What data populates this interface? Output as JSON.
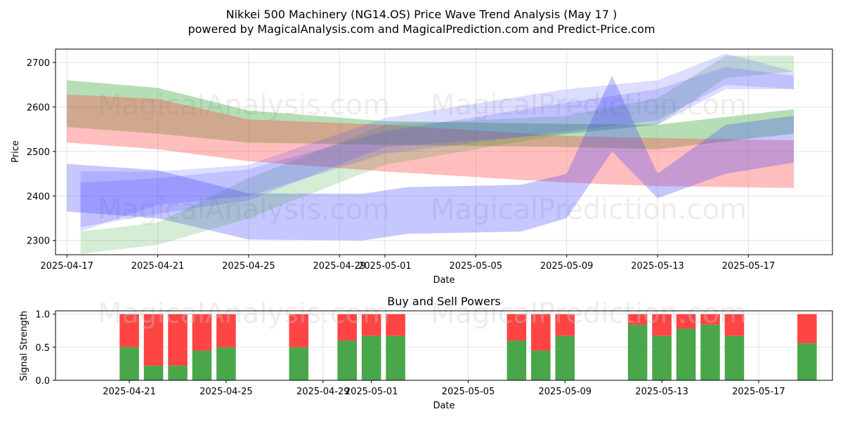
{
  "header": {
    "title_line1": "Nikkei 500 Machinery (NG14.OS) Price Wave Trend Analysis (May 17 )",
    "title_line2": "powered by MagicalAnalysis.com and MagicalPrediction.com and Predict-Price.com"
  },
  "watermarks": {
    "top_left": "MagicalAnalysis.com",
    "top_right": "MagicalPrediction.com",
    "bottom_left": "MagicalAnalysis.com",
    "bottom_right": "MagicalPrediction.com"
  },
  "colors": {
    "green": "#2ca02c",
    "red": "#ff4444",
    "blue": "#4444ff",
    "bar_green": "#4aa64a",
    "bar_red": "#ff4444"
  },
  "chart_data": [
    {
      "type": "area",
      "title": "",
      "xlabel": "Date",
      "ylabel": "Price",
      "xlim": [
        "2025-04-16.5",
        "2025-05-20.7"
      ],
      "ylim": [
        2268,
        2730
      ],
      "grid": true,
      "x_ticks": [
        "2025-04-17",
        "2025-04-21",
        "2025-04-25",
        "2025-04-29",
        "2025-05-01",
        "2025-05-05",
        "2025-05-09",
        "2025-05-13",
        "2025-05-17"
      ],
      "y_ticks": [
        2300,
        2400,
        2500,
        2600,
        2700
      ],
      "bands": [
        {
          "color": "green",
          "opacity": 0.35,
          "points": [
            [
              "2025-04-17",
              2555,
              2660
            ],
            [
              "2025-04-21",
              2540,
              2643
            ],
            [
              "2025-04-25",
              2520,
              2592
            ],
            [
              "2025-05-01",
              2515,
              2568
            ],
            [
              "2025-05-09",
              2510,
              2562
            ],
            [
              "2025-05-13",
              2505,
              2560
            ],
            [
              "2025-05-19",
              2540,
              2595
            ]
          ]
        },
        {
          "color": "red",
          "opacity": 0.35,
          "points": [
            [
              "2025-04-17",
              2520,
              2628
            ],
            [
              "2025-04-21",
              2505,
              2618
            ],
            [
              "2025-04-25",
              2478,
              2572
            ],
            [
              "2025-05-01",
              2455,
              2560
            ],
            [
              "2025-05-09",
              2430,
              2535
            ],
            [
              "2025-05-13",
              2422,
              2530
            ],
            [
              "2025-05-19",
              2418,
              2525
            ]
          ]
        },
        {
          "color": "blue",
          "opacity": 0.3,
          "points": [
            [
              "2025-04-17",
              2365,
              2472
            ],
            [
              "2025-04-21",
              2350,
              2458
            ],
            [
              "2025-04-25",
              2302,
              2406
            ],
            [
              "2025-04-30",
              2300,
              2405
            ],
            [
              "2025-05-02",
              2315,
              2420
            ],
            [
              "2025-05-07",
              2320,
              2425
            ],
            [
              "2025-05-09",
              2350,
              2450
            ],
            [
              "2025-05-11",
              2500,
              2670
            ],
            [
              "2025-05-13",
              2395,
              2450
            ],
            [
              "2025-05-16",
              2450,
              2560
            ],
            [
              "2025-05-19",
              2475,
              2580
            ]
          ]
        },
        {
          "color": "green",
          "opacity": 0.2,
          "points": [
            [
              "2025-04-17.6",
              2270,
              2320
            ],
            [
              "2025-04-21",
              2290,
              2340
            ],
            [
              "2025-04-25",
              2350,
              2440
            ],
            [
              "2025-05-01",
              2470,
              2560
            ],
            [
              "2025-05-09",
              2540,
              2580
            ],
            [
              "2025-05-13",
              2560,
              2620
            ],
            [
              "2025-05-16",
              2665,
              2715
            ],
            [
              "2025-05-19",
              2680,
              2715
            ]
          ]
        },
        {
          "color": "blue",
          "opacity": 0.18,
          "points": [
            [
              "2025-04-17.6",
              2330,
              2455
            ],
            [
              "2025-04-21",
              2360,
              2455
            ],
            [
              "2025-04-25",
              2390,
              2470
            ],
            [
              "2025-05-01",
              2510,
              2575
            ],
            [
              "2025-05-09",
              2540,
              2640
            ],
            [
              "2025-05-13",
              2560,
              2660
            ],
            [
              "2025-05-16",
              2640,
              2720
            ],
            [
              "2025-05-19",
              2640,
              2680
            ]
          ]
        },
        {
          "color": "blue",
          "opacity": 0.18,
          "points": [
            [
              "2025-04-17.6",
              2320,
              2430
            ],
            [
              "2025-04-21",
              2380,
              2440
            ],
            [
              "2025-04-25",
              2400,
              2460
            ],
            [
              "2025-05-01",
              2495,
              2545
            ],
            [
              "2025-05-09",
              2545,
              2610
            ],
            [
              "2025-05-13",
              2570,
              2640
            ],
            [
              "2025-05-16",
              2650,
              2690
            ],
            [
              "2025-05-19",
              2640,
              2670
            ]
          ]
        }
      ]
    },
    {
      "type": "bar",
      "title": "Buy and Sell Powers",
      "xlabel": "Date",
      "ylabel": "Signal Strength",
      "ylim": [
        0,
        1.05
      ],
      "grid": true,
      "x_ticks": [
        "2025-04-21",
        "2025-04-25",
        "2025-04-29",
        "2025-05-01",
        "2025-05-05",
        "2025-05-09",
        "2025-05-13",
        "2025-05-17"
      ],
      "y_ticks": [
        "0.0",
        "0.5",
        "1.0"
      ],
      "series": [
        {
          "name": "Buy",
          "color": "bar_green"
        },
        {
          "name": "Sell",
          "color": "bar_red"
        }
      ],
      "categories": [
        "2025-04-21",
        "2025-04-22",
        "2025-04-23",
        "2025-04-24",
        "2025-04-25",
        "2025-04-28",
        "2025-04-30",
        "2025-05-01",
        "2025-05-02",
        "2025-05-07",
        "2025-05-08",
        "2025-05-09",
        "2025-05-12",
        "2025-05-13",
        "2025-05-14",
        "2025-05-15",
        "2025-05-16",
        "2025-05-19"
      ],
      "buy": [
        0.5,
        0.22,
        0.22,
        0.45,
        0.5,
        0.5,
        0.6,
        0.67,
        0.67,
        0.6,
        0.45,
        0.67,
        0.84,
        0.67,
        0.78,
        0.84,
        0.67,
        0.56
      ]
    }
  ]
}
